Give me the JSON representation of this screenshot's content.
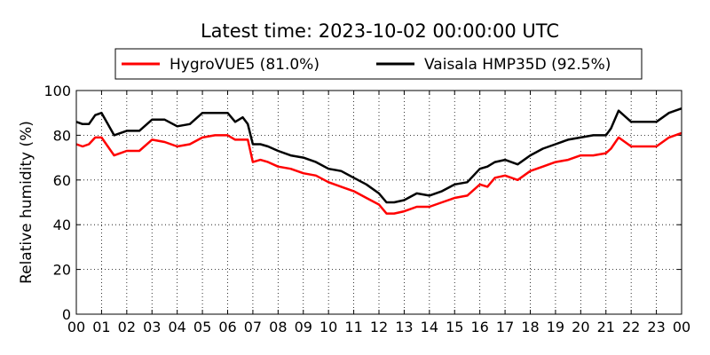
{
  "chart_data": {
    "type": "line",
    "title": "Latest time: 2023-10-02 00:00:00 UTC",
    "xlabel": "",
    "ylabel": "Relative humidity (%)",
    "x_ticks": [
      "00",
      "01",
      "02",
      "03",
      "04",
      "05",
      "06",
      "07",
      "08",
      "09",
      "10",
      "11",
      "12",
      "13",
      "14",
      "15",
      "16",
      "17",
      "18",
      "19",
      "20",
      "21",
      "22",
      "23",
      "00"
    ],
    "y_ticks": [
      "0",
      "20",
      "40",
      "60",
      "80",
      "100"
    ],
    "ylim": [
      0,
      100
    ],
    "grid": true,
    "legend_placement": "top",
    "x_hours": [
      0,
      0.25,
      0.5,
      0.75,
      1,
      1.25,
      1.5,
      1.75,
      2,
      2.5,
      3,
      3.5,
      4,
      4.5,
      5,
      5.5,
      6,
      6.3,
      6.6,
      6.8,
      7,
      7.3,
      7.6,
      8,
      8.5,
      9,
      9.5,
      10,
      10.5,
      11,
      11.5,
      12,
      12.3,
      12.6,
      13,
      13.5,
      14,
      14.5,
      15,
      15.5,
      16,
      16.3,
      16.6,
      17,
      17.5,
      18,
      18.5,
      19,
      19.5,
      20,
      20.5,
      21,
      21.2,
      21.5,
      22,
      22.5,
      23,
      23.5,
      24
    ],
    "series": [
      {
        "name": "HygroVUE5 (81.0%)",
        "color": "#ff0000",
        "values": [
          76,
          75,
          76,
          79,
          79,
          75,
          71,
          72,
          73,
          73,
          78,
          77,
          75,
          76,
          79,
          80,
          80,
          78,
          78,
          78,
          68,
          69,
          68,
          66,
          65,
          63,
          62,
          59,
          57,
          55,
          52,
          49,
          45,
          45,
          46,
          48,
          48,
          50,
          52,
          53,
          58,
          57,
          61,
          62,
          60,
          64,
          66,
          68,
          69,
          71,
          71,
          72,
          74,
          79,
          75,
          75,
          75,
          79,
          81
        ]
      },
      {
        "name": "Vaisala HMP35D (92.5%)",
        "color": "#000000",
        "values": [
          86,
          85,
          85,
          89,
          90,
          85,
          80,
          81,
          82,
          82,
          87,
          87,
          84,
          85,
          90,
          90,
          90,
          86,
          88,
          85,
          76,
          76,
          75,
          73,
          71,
          70,
          68,
          65,
          64,
          61,
          58,
          54,
          50,
          50,
          51,
          54,
          53,
          55,
          58,
          59,
          65,
          66,
          68,
          69,
          67,
          71,
          74,
          76,
          78,
          79,
          80,
          80,
          83,
          91,
          86,
          86,
          86,
          90,
          92
        ]
      }
    ]
  }
}
